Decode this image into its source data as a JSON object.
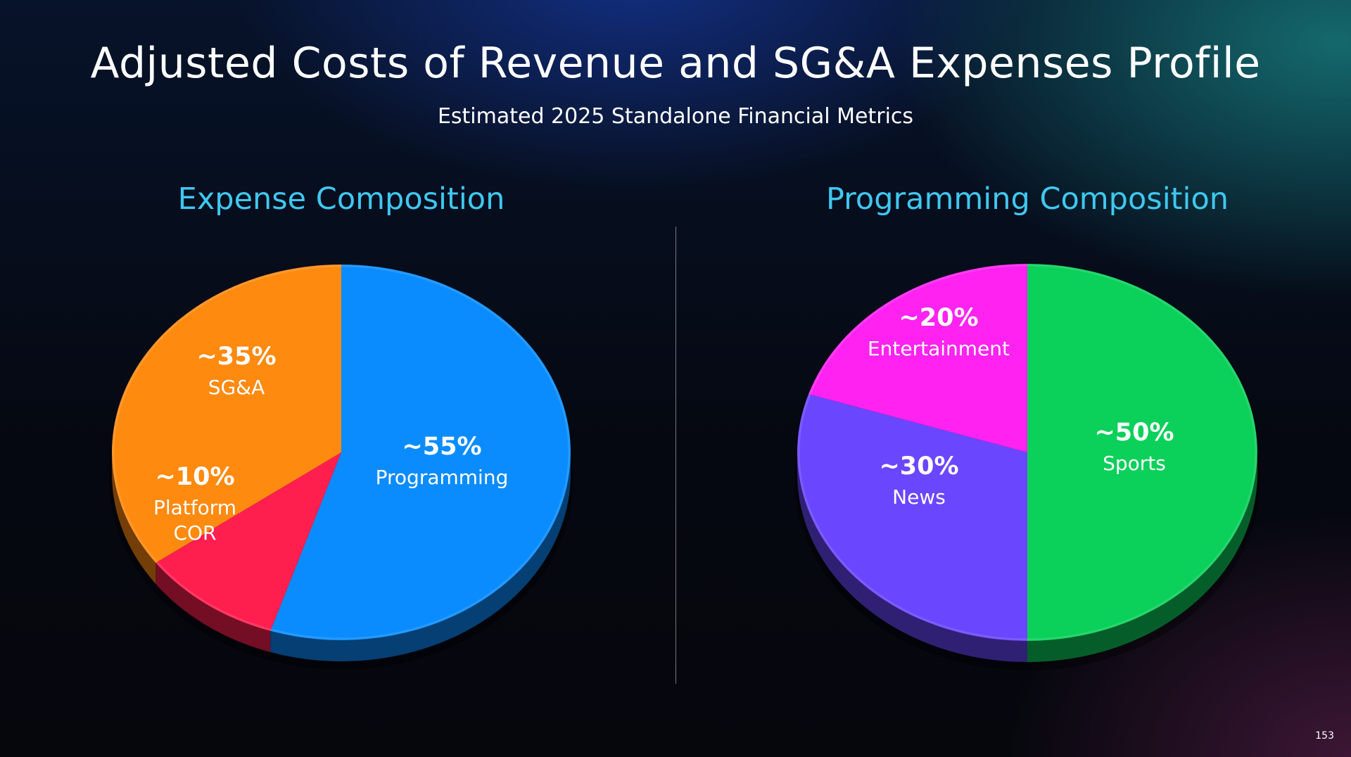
{
  "slide": {
    "title": "Adjusted Costs of Revenue and SG&A Expenses Profile",
    "subtitle": "Estimated 2025 Standalone Financial Metrics",
    "page_number": "153"
  },
  "chart_data": [
    {
      "type": "pie",
      "title": "Expense Composition",
      "slices": [
        {
          "name": "Programming",
          "value": 55,
          "label": "~55%",
          "color": "#0a8cff"
        },
        {
          "name": "Platform COR",
          "value": 10,
          "label": "~10%",
          "color": "#ff1f4f"
        },
        {
          "name": "SG&A",
          "value": 35,
          "label": "~35%",
          "color": "#ff8a10"
        }
      ]
    },
    {
      "type": "pie",
      "title": "Programming Composition",
      "slices": [
        {
          "name": "Sports",
          "value": 50,
          "label": "~50%",
          "color": "#0bd05a"
        },
        {
          "name": "News",
          "value": 30,
          "label": "~30%",
          "color": "#6b46ff"
        },
        {
          "name": "Entertainment",
          "value": 20,
          "label": "~20%",
          "color": "#ff22f0"
        }
      ]
    }
  ]
}
